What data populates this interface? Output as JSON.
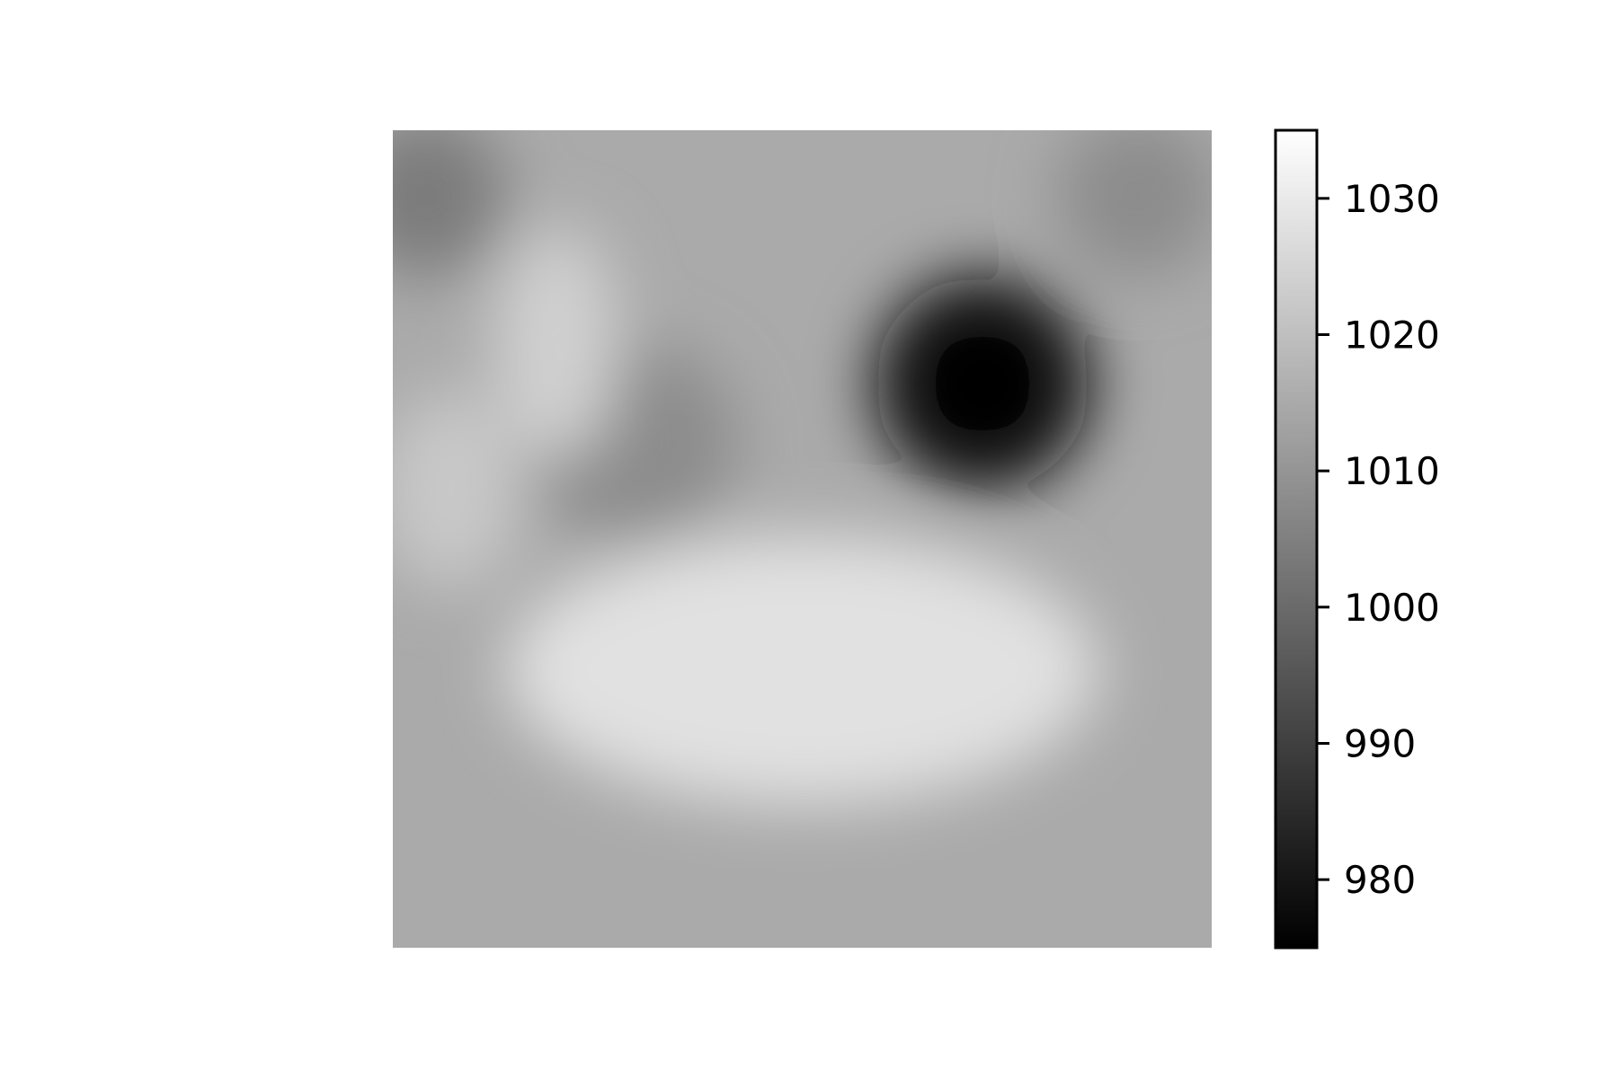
{
  "chart_data": {
    "type": "heatmap",
    "title": "",
    "xlabel": "",
    "ylabel": "",
    "colormap": "gray",
    "colorbar": {
      "vmin": 975,
      "vmax": 1035,
      "ticks": [
        980,
        990,
        1000,
        1010,
        1020,
        1030
      ],
      "tick_labels": [
        "980",
        "990",
        "1000",
        "1010",
        "1020",
        "1030"
      ]
    },
    "field": {
      "background_value": 1015,
      "features": [
        {
          "kind": "low",
          "cx": 0.72,
          "cy": 0.31,
          "value": 977
        },
        {
          "kind": "low",
          "cx": 0.29,
          "cy": 0.38,
          "value": 1008
        },
        {
          "kind": "low",
          "cx": 0.04,
          "cy": 0.08,
          "value": 1004
        },
        {
          "kind": "low",
          "cx": 0.91,
          "cy": 0.08,
          "value": 1008
        },
        {
          "kind": "high",
          "cx": 0.5,
          "cy": 0.66,
          "value": 1028
        },
        {
          "kind": "high",
          "cx": 0.2,
          "cy": 0.26,
          "value": 1024
        },
        {
          "kind": "high",
          "cx": 0.07,
          "cy": 0.44,
          "value": 1022
        }
      ]
    },
    "grid": false,
    "legend": "colorbar-right"
  }
}
